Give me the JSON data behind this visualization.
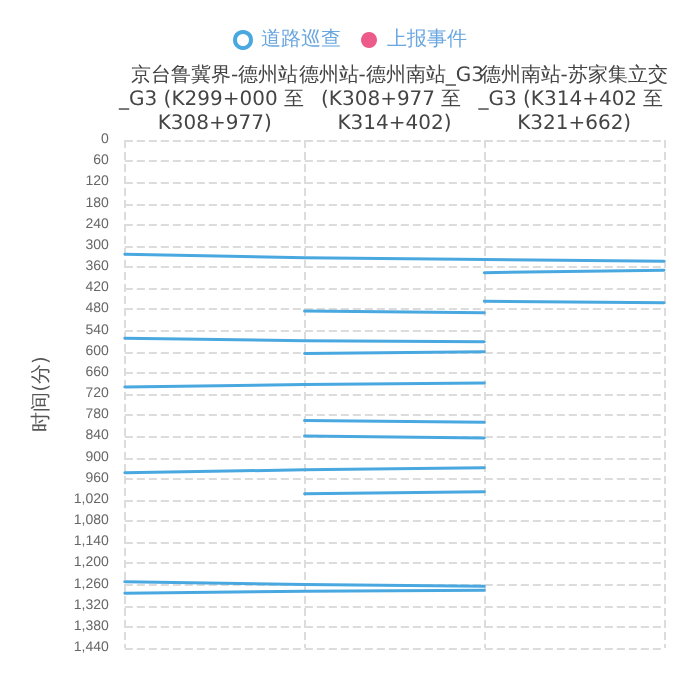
{
  "chart_data": {
    "type": "line",
    "ylabel": "时间(分)",
    "annotations": [
      "京台鲁冀界-德州站_G3 (K299+000 至 K308+977)",
      "德州站-德州南站_G3 (K308+977 至 K314+402)",
      "德州南站-苏家集立交_G3 (K314+402 至 K321+662)"
    ],
    "categories": [
      null,
      null,
      null,
      null
    ],
    "ylim": [
      1440,
      0
    ],
    "yticks": [
      0,
      60,
      120,
      180,
      240,
      300,
      360,
      420,
      480,
      540,
      600,
      660,
      720,
      780,
      840,
      900,
      960,
      {
        "value": 1020,
        "label": "1,020"
      },
      {
        "value": 1080,
        "label": "1,080"
      },
      {
        "value": 1140,
        "label": "1,140"
      },
      {
        "value": 1200,
        "label": "1,200"
      },
      {
        "value": 1260,
        "label": "1,260"
      },
      {
        "value": 1320,
        "label": "1,320"
      },
      {
        "value": 1380,
        "label": "1,380"
      },
      {
        "value": 1440,
        "label": "1,440"
      }
    ],
    "grid": true,
    "legend": "top",
    "marker": "none",
    "line_style": "solid",
    "series": [
      {
        "name": "道路巡查",
        "color": "#4aa8e0",
        "values": [
          324,
          334,
          339,
          344
        ]
      },
      {
        "color": "#4aa8e0",
        "values": [
          null,
          null,
          376,
          369
        ]
      },
      {
        "color": "#4aa8e0",
        "values": [
          null,
          null,
          457,
          461
        ]
      },
      {
        "color": "#4aa8e0",
        "values": [
          null,
          485,
          490,
          null
        ]
      },
      {
        "color": "#4aa8e0",
        "values": [
          562,
          569,
          572,
          null
        ]
      },
      {
        "color": "#4aa8e0",
        "values": [
          null,
          605,
          600,
          null
        ]
      },
      {
        "color": "#4aa8e0",
        "values": [
          700,
          693,
          689,
          null
        ]
      },
      {
        "color": "#4aa8e0",
        "values": [
          null,
          795,
          800,
          null
        ]
      },
      {
        "color": "#4aa8e0",
        "values": [
          null,
          839,
          845,
          null
        ]
      },
      {
        "color": "#4aa8e0",
        "values": [
          943,
          935,
          929,
          null
        ]
      },
      {
        "color": "#4aa8e0",
        "values": [
          null,
          1003,
          997,
          null
        ]
      },
      {
        "color": "#4aa8e0",
        "values": [
          1252,
          1260,
          1265,
          null
        ]
      },
      {
        "color": "#4aa8e0",
        "values": [
          1285,
          1279,
          1276,
          null
        ]
      },
      {
        "name": "上报事件",
        "color": "#e8336b",
        "type": "scatter",
        "values": [
          null,
          null,
          null,
          null
        ]
      }
    ]
  }
}
